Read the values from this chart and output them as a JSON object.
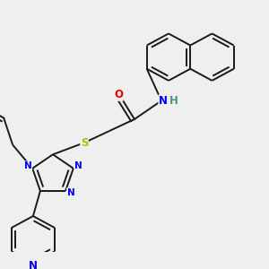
{
  "bg_color": "#efefef",
  "bond_color": "#1a1a1a",
  "bond_width": 1.4,
  "dbo": 0.012,
  "atom_colors": {
    "N": "#0000ee",
    "O": "#ee0000",
    "S": "#bbbb00",
    "H": "#4a9090",
    "C": "#1a1a1a"
  },
  "fs": 8.5
}
